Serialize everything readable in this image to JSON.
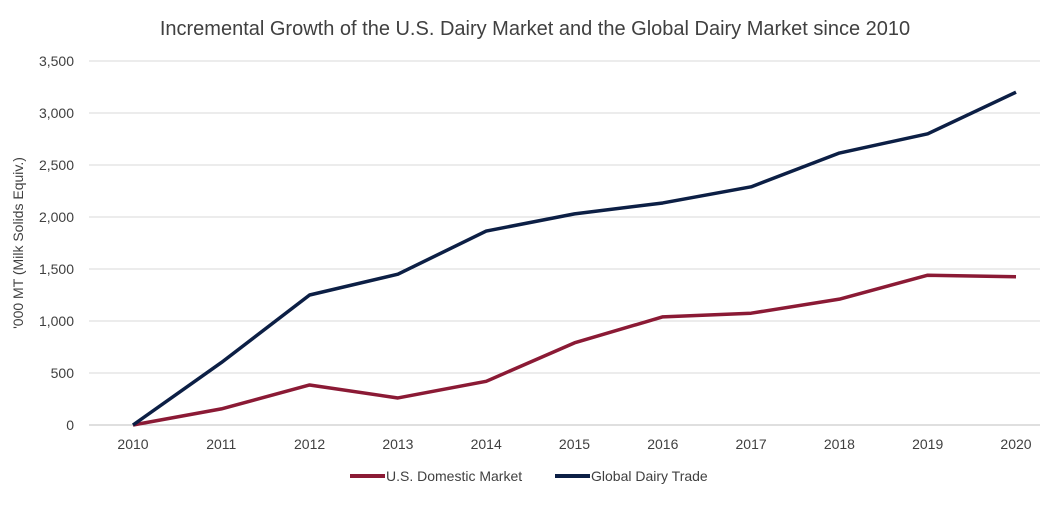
{
  "chart_data": {
    "type": "line",
    "title": "Incremental Growth of the U.S. Dairy Market and the Global Dairy Market since 2010",
    "xlabel": "",
    "ylabel": "'000 MT (Milk Solids Equiv.)",
    "categories": [
      "2010",
      "2011",
      "2012",
      "2013",
      "2014",
      "2015",
      "2016",
      "2017",
      "2018",
      "2019",
      "2020"
    ],
    "ylim": [
      0,
      3500
    ],
    "yticks": [
      0,
      500,
      1000,
      1500,
      2000,
      2500,
      3000,
      3500
    ],
    "ytick_labels": [
      "0",
      "500",
      "1,000",
      "1,500",
      "2,000",
      "2,500",
      "3,000",
      "3,500"
    ],
    "grid": "horizontal",
    "legend_position": "bottom",
    "series": [
      {
        "name": "U.S. Domestic Market",
        "color": "#8b1a35",
        "values": [
          0,
          155,
          385,
          260,
          420,
          790,
          1040,
          1075,
          1210,
          1440,
          1425
        ]
      },
      {
        "name": "Global Dairy Trade",
        "color": "#0c1f45",
        "values": [
          0,
          600,
          1250,
          1450,
          1865,
          2030,
          2135,
          2290,
          2615,
          2800,
          3200
        ]
      }
    ]
  }
}
